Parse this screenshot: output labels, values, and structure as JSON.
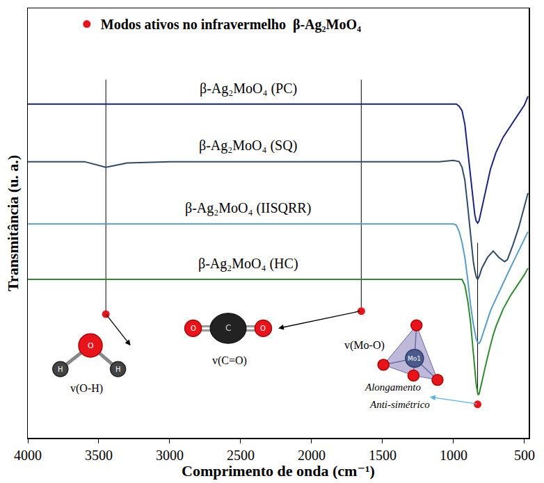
{
  "chart_data": {
    "type": "line",
    "y_title": "Transmitância (u. a.)",
    "x_title": "Comprimento de onda (cm⁻¹)",
    "xlim": [
      4000,
      470
    ],
    "xticks": [
      4000,
      3500,
      3000,
      2500,
      2000,
      1500,
      1000,
      500
    ],
    "ylim": [
      0,
      100
    ],
    "yticks": [],
    "tick_labels": "x",
    "grid": false,
    "legend": "upper left",
    "modes_name": "Modos ativos no infravermelho  β-Ag₂MoO₄",
    "modes_color": "#e8141b",
    "modes": [
      {
        "x": 3450,
        "y": 28.8,
        "line": [
          28.8,
          83.4
        ],
        "label": "v(O-H)"
      },
      {
        "x": 1650,
        "y": 29.5,
        "line": [
          29.5,
          83.4
        ],
        "label": "v(C=O)"
      },
      {
        "x": 830,
        "y": 7.8,
        "line": [
          10,
          45.4
        ],
        "label": "v(Mo-O)",
        "note": [
          "Alongamento",
          "Anti-simétrico"
        ]
      }
    ],
    "icons": {
      "water": [
        "O",
        "H",
        "H"
      ],
      "co2": [
        "O",
        "C",
        "O"
      ],
      "tetrahedron": "Mo1"
    },
    "series": [
      {
        "name": "β-Ag₂MoO₄ (PC)",
        "color": "#1a237e",
        "x": [
          4000,
          3500,
          3000,
          2500,
          2000,
          1500,
          1100,
          1000,
          980,
          960,
          940,
          920,
          900,
          880,
          860,
          850,
          840,
          830,
          820,
          810,
          800,
          780,
          760,
          740,
          720,
          700,
          650,
          600,
          550,
          500,
          475
        ],
        "values": [
          77.7,
          77.7,
          77.7,
          77.7,
          77.7,
          77.7,
          77.7,
          77.7,
          77.7,
          77.2,
          76.2,
          73,
          67,
          60,
          54,
          52,
          50.5,
          50,
          50.5,
          52,
          54,
          57,
          60,
          62.5,
          64.5,
          66.5,
          70,
          72.5,
          75,
          77.5,
          79.5
        ]
      },
      {
        "name": "β-Ag₂MoO₄ (SQ)",
        "color": "#2e4a6b",
        "x": [
          4000,
          3600,
          3450,
          3300,
          3000,
          2500,
          2000,
          1500,
          1100,
          1000,
          960,
          940,
          920,
          900,
          880,
          860,
          850,
          840,
          830,
          820,
          810,
          800,
          760,
          720,
          680,
          640,
          620,
          580,
          540,
          500,
          475
        ],
        "values": [
          64.3,
          64.3,
          63.0,
          64.0,
          64.3,
          64.3,
          64.3,
          64.3,
          64.3,
          64.6,
          64.3,
          63,
          60,
          54,
          47,
          41,
          39,
          37.5,
          36.9,
          37.5,
          38.5,
          39.5,
          42,
          43.5,
          42,
          41,
          41.5,
          45,
          49,
          54,
          57
        ]
      },
      {
        "name": "β-Ag₂MoO₄ (IISQRR)",
        "color": "#5b9bc8",
        "x": [
          4000,
          3500,
          3000,
          2500,
          2000,
          1500,
          1100,
          1000,
          980,
          960,
          940,
          920,
          900,
          880,
          860,
          850,
          840,
          830,
          820,
          810,
          800,
          780,
          760,
          740,
          720,
          700,
          650,
          600,
          550,
          500,
          475
        ],
        "values": [
          49.8,
          49.8,
          49.8,
          49.8,
          49.8,
          49.8,
          49.8,
          49.8,
          49.5,
          48,
          45.5,
          42,
          37,
          31,
          26.5,
          24.5,
          23,
          22.2,
          22,
          22.5,
          23.5,
          25.5,
          27.5,
          29.5,
          31,
          32.5,
          36,
          39.5,
          43,
          46.5,
          48
        ]
      },
      {
        "name": "β-Ag₂MoO₄ (HC)",
        "color": "#2e8b2e",
        "x": [
          4000,
          3500,
          3000,
          2500,
          2000,
          1500,
          1100,
          1000,
          960,
          940,
          920,
          900,
          880,
          860,
          850,
          840,
          830,
          825,
          820,
          810,
          800,
          780,
          760,
          740,
          720,
          700,
          650,
          600,
          550,
          500,
          475
        ],
        "values": [
          36.9,
          36.9,
          36.9,
          36.9,
          36.9,
          36.9,
          36.9,
          36.9,
          36.9,
          36.9,
          35.5,
          32,
          27,
          20,
          16,
          12.5,
          10.5,
          10,
          10.2,
          11.5,
          13,
          16,
          19,
          21.5,
          24,
          26,
          30,
          33,
          35.5,
          38,
          39.5
        ]
      }
    ]
  }
}
